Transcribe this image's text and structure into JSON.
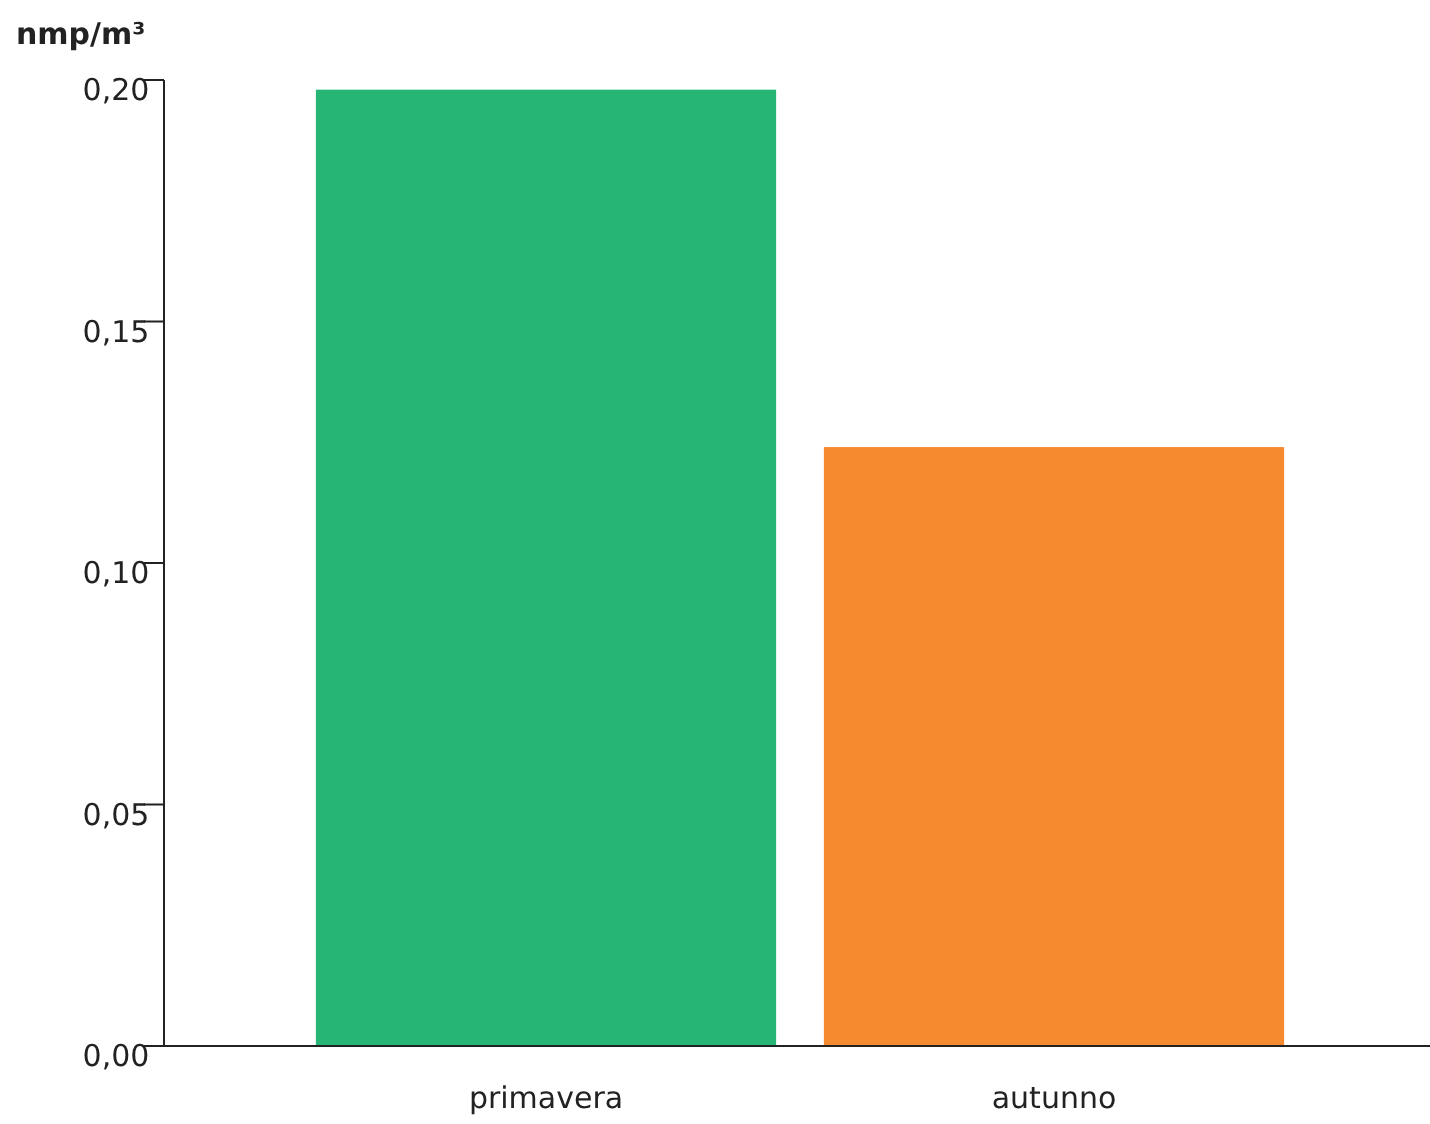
{
  "chart_data": {
    "type": "bar",
    "ylabel": "nmp/m³",
    "categories": [
      "primavera",
      "autunno"
    ],
    "values": [
      0.198,
      0.124
    ],
    "colors": [
      "#26b574",
      "#f58a2e"
    ],
    "ylim": [
      0,
      0.2
    ],
    "yticks": [
      {
        "value": 0,
        "label": "0,00"
      },
      {
        "value": 0.05,
        "label": "0,05"
      },
      {
        "value": 0.1,
        "label": "0,10"
      },
      {
        "value": 0.15,
        "label": "0,15"
      },
      {
        "value": 0.2,
        "label": "0,20"
      }
    ],
    "grid": false
  }
}
